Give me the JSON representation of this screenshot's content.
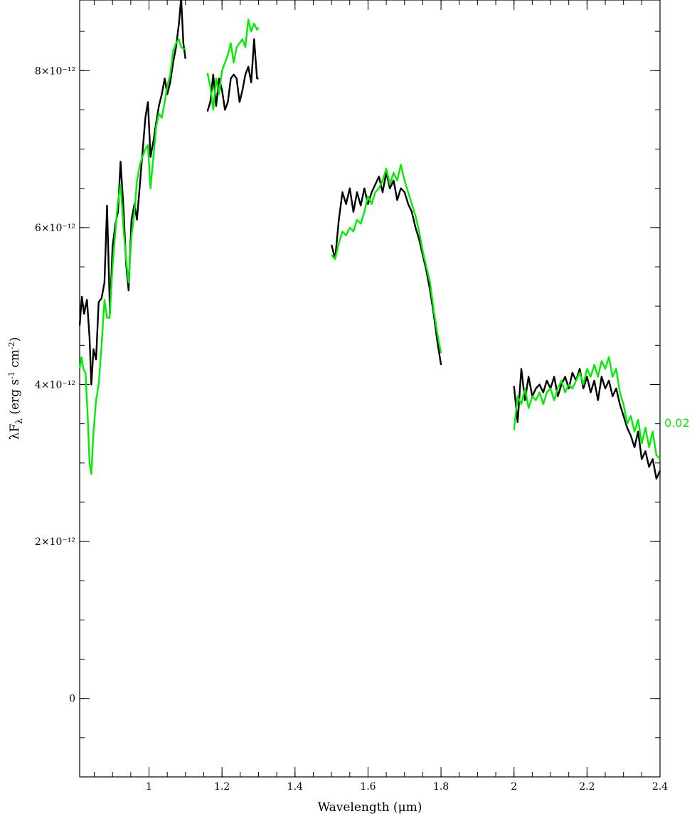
{
  "chart_data": {
    "type": "line",
    "xlabel": "Wavelength (μm)",
    "ylabel": "λF_λ (erg s⁻¹ cm⁻²)",
    "xlim": [
      0.81,
      2.4
    ],
    "ylim": [
      -1e-12,
      8.9e-12
    ],
    "grid": false,
    "x_ticks": [
      {
        "value": 1.0,
        "label": "1"
      },
      {
        "value": 1.2,
        "label": "1.2"
      },
      {
        "value": 1.4,
        "label": "1.4"
      },
      {
        "value": 1.6,
        "label": "1.6"
      },
      {
        "value": 1.8,
        "label": "1.8"
      },
      {
        "value": 2.0,
        "label": "2"
      },
      {
        "value": 2.2,
        "label": "2.2"
      },
      {
        "value": 2.4,
        "label": "2.4"
      }
    ],
    "x_minor_step": 0.05,
    "y_ticks": [
      {
        "value": 0,
        "label": "0"
      },
      {
        "value": 2e-12,
        "label": "2×10⁻¹²"
      },
      {
        "value": 4e-12,
        "label": "4×10⁻¹²"
      },
      {
        "value": 6e-12,
        "label": "6×10⁻¹²"
      },
      {
        "value": 8e-12,
        "label": "8×10⁻¹²"
      }
    ],
    "y_minor_step": 5e-13,
    "series": [
      {
        "color": "#000000",
        "segments": [
          [
            [
              0.81,
              4.75
            ],
            [
              0.816,
              5.12
            ],
            [
              0.822,
              4.9
            ],
            [
              0.83,
              5.08
            ],
            [
              0.837,
              4.6
            ],
            [
              0.842,
              4.0
            ],
            [
              0.848,
              4.45
            ],
            [
              0.855,
              4.32
            ],
            [
              0.862,
              5.05
            ],
            [
              0.87,
              5.1
            ],
            [
              0.878,
              5.3
            ],
            [
              0.885,
              6.28
            ],
            [
              0.893,
              4.9
            ],
            [
              0.9,
              5.75
            ],
            [
              0.908,
              6.05
            ],
            [
              0.915,
              6.2
            ],
            [
              0.922,
              6.84
            ],
            [
              0.93,
              6.25
            ],
            [
              0.937,
              5.55
            ],
            [
              0.944,
              5.2
            ],
            [
              0.952,
              6.1
            ],
            [
              0.96,
              6.3
            ],
            [
              0.967,
              6.1
            ],
            [
              0.975,
              6.55
            ],
            [
              0.982,
              6.95
            ],
            [
              0.99,
              7.4
            ],
            [
              0.997,
              7.6
            ],
            [
              1.004,
              6.9
            ],
            [
              1.012,
              7.1
            ],
            [
              1.02,
              7.35
            ],
            [
              1.027,
              7.55
            ],
            [
              1.035,
              7.7
            ],
            [
              1.043,
              7.9
            ],
            [
              1.05,
              7.7
            ],
            [
              1.058,
              7.85
            ],
            [
              1.066,
              8.1
            ],
            [
              1.074,
              8.3
            ],
            [
              1.082,
              8.6
            ],
            [
              1.088,
              8.93
            ],
            [
              1.094,
              8.35
            ],
            [
              1.1,
              8.15
            ]
          ],
          [
            [
              1.16,
              7.48
            ],
            [
              1.168,
              7.6
            ],
            [
              1.176,
              7.95
            ],
            [
              1.184,
              7.55
            ],
            [
              1.192,
              7.9
            ],
            [
              1.2,
              7.75
            ],
            [
              1.208,
              7.5
            ],
            [
              1.216,
              7.6
            ],
            [
              1.224,
              7.9
            ],
            [
              1.232,
              7.95
            ],
            [
              1.24,
              7.9
            ],
            [
              1.248,
              7.6
            ],
            [
              1.256,
              7.75
            ],
            [
              1.264,
              7.95
            ],
            [
              1.272,
              8.05
            ],
            [
              1.28,
              7.85
            ],
            [
              1.288,
              8.4
            ],
            [
              1.296,
              7.9
            ],
            [
              1.3,
              7.9
            ]
          ],
          [
            [
              1.5,
              5.78
            ],
            [
              1.51,
              5.6
            ],
            [
              1.52,
              6.1
            ],
            [
              1.53,
              6.45
            ],
            [
              1.54,
              6.3
            ],
            [
              1.55,
              6.5
            ],
            [
              1.56,
              6.2
            ],
            [
              1.57,
              6.45
            ],
            [
              1.58,
              6.28
            ],
            [
              1.59,
              6.5
            ],
            [
              1.6,
              6.3
            ],
            [
              1.61,
              6.45
            ],
            [
              1.62,
              6.55
            ],
            [
              1.63,
              6.65
            ],
            [
              1.64,
              6.45
            ],
            [
              1.65,
              6.7
            ],
            [
              1.66,
              6.5
            ],
            [
              1.67,
              6.6
            ],
            [
              1.68,
              6.35
            ],
            [
              1.69,
              6.5
            ],
            [
              1.7,
              6.45
            ],
            [
              1.71,
              6.3
            ],
            [
              1.72,
              6.2
            ],
            [
              1.73,
              6.0
            ],
            [
              1.74,
              5.85
            ],
            [
              1.75,
              5.65
            ],
            [
              1.76,
              5.45
            ],
            [
              1.77,
              5.2
            ],
            [
              1.78,
              4.9
            ],
            [
              1.79,
              4.55
            ],
            [
              1.8,
              4.25
            ]
          ],
          [
            [
              2.0,
              3.98
            ],
            [
              2.01,
              3.52
            ],
            [
              2.02,
              4.2
            ],
            [
              2.03,
              3.8
            ],
            [
              2.04,
              4.1
            ],
            [
              2.05,
              3.85
            ],
            [
              2.06,
              3.95
            ],
            [
              2.07,
              4.0
            ],
            [
              2.08,
              3.9
            ],
            [
              2.09,
              4.05
            ],
            [
              2.1,
              3.95
            ],
            [
              2.11,
              4.1
            ],
            [
              2.12,
              3.85
            ],
            [
              2.13,
              4.0
            ],
            [
              2.14,
              4.1
            ],
            [
              2.15,
              3.95
            ],
            [
              2.16,
              4.15
            ],
            [
              2.17,
              4.05
            ],
            [
              2.18,
              4.2
            ],
            [
              2.19,
              3.95
            ],
            [
              2.2,
              4.1
            ],
            [
              2.21,
              3.9
            ],
            [
              2.22,
              4.05
            ],
            [
              2.23,
              3.8
            ],
            [
              2.24,
              4.1
            ],
            [
              2.25,
              3.95
            ],
            [
              2.26,
              4.05
            ],
            [
              2.27,
              3.85
            ],
            [
              2.28,
              3.95
            ],
            [
              2.29,
              3.75
            ],
            [
              2.3,
              3.6
            ],
            [
              2.31,
              3.45
            ],
            [
              2.32,
              3.35
            ],
            [
              2.33,
              3.2
            ],
            [
              2.34,
              3.4
            ],
            [
              2.35,
              3.05
            ],
            [
              2.36,
              3.15
            ],
            [
              2.37,
              2.95
            ],
            [
              2.38,
              3.05
            ],
            [
              2.39,
              2.8
            ],
            [
              2.4,
              2.9
            ]
          ]
        ]
      },
      {
        "name": "0.02",
        "color": "#00ee00",
        "segments": [
          [
            [
              0.81,
              4.2
            ],
            [
              0.815,
              4.35
            ],
            [
              0.82,
              4.2
            ],
            [
              0.826,
              4.15
            ],
            [
              0.832,
              3.6
            ],
            [
              0.837,
              3.0
            ],
            [
              0.842,
              2.86
            ],
            [
              0.848,
              3.4
            ],
            [
              0.855,
              3.8
            ],
            [
              0.862,
              4.0
            ],
            [
              0.87,
              4.5
            ],
            [
              0.878,
              5.08
            ],
            [
              0.885,
              4.85
            ],
            [
              0.892,
              4.85
            ],
            [
              0.9,
              5.5
            ],
            [
              0.907,
              5.9
            ],
            [
              0.914,
              6.3
            ],
            [
              0.922,
              6.55
            ],
            [
              0.93,
              6.0
            ],
            [
              0.937,
              5.6
            ],
            [
              0.944,
              5.3
            ],
            [
              0.952,
              5.9
            ],
            [
              0.96,
              6.2
            ],
            [
              0.967,
              6.6
            ],
            [
              0.975,
              6.8
            ],
            [
              0.982,
              6.9
            ],
            [
              0.99,
              7.0
            ],
            [
              0.997,
              7.05
            ],
            [
              1.004,
              6.5
            ],
            [
              1.012,
              6.9
            ],
            [
              1.02,
              7.3
            ],
            [
              1.027,
              7.45
            ],
            [
              1.035,
              7.4
            ],
            [
              1.043,
              7.6
            ],
            [
              1.05,
              7.8
            ],
            [
              1.058,
              7.95
            ],
            [
              1.066,
              8.25
            ],
            [
              1.074,
              8.35
            ],
            [
              1.082,
              8.4
            ],
            [
              1.088,
              8.3
            ],
            [
              1.094,
              8.28
            ],
            [
              1.1,
              8.28
            ]
          ],
          [
            [
              1.16,
              7.97
            ],
            [
              1.168,
              7.8
            ],
            [
              1.176,
              7.5
            ],
            [
              1.184,
              7.9
            ],
            [
              1.192,
              7.7
            ],
            [
              1.2,
              8.0
            ],
            [
              1.208,
              8.1
            ],
            [
              1.216,
              8.2
            ],
            [
              1.224,
              8.35
            ],
            [
              1.232,
              8.1
            ],
            [
              1.24,
              8.3
            ],
            [
              1.248,
              8.35
            ],
            [
              1.256,
              8.4
            ],
            [
              1.264,
              8.3
            ],
            [
              1.272,
              8.65
            ],
            [
              1.28,
              8.5
            ],
            [
              1.288,
              8.6
            ],
            [
              1.296,
              8.52
            ],
            [
              1.3,
              8.55
            ]
          ],
          [
            [
              1.5,
              5.65
            ],
            [
              1.51,
              5.6
            ],
            [
              1.52,
              5.8
            ],
            [
              1.53,
              5.95
            ],
            [
              1.54,
              5.9
            ],
            [
              1.55,
              6.0
            ],
            [
              1.56,
              5.95
            ],
            [
              1.57,
              6.1
            ],
            [
              1.58,
              6.05
            ],
            [
              1.59,
              6.2
            ],
            [
              1.6,
              6.4
            ],
            [
              1.61,
              6.3
            ],
            [
              1.62,
              6.45
            ],
            [
              1.63,
              6.5
            ],
            [
              1.64,
              6.6
            ],
            [
              1.65,
              6.75
            ],
            [
              1.66,
              6.55
            ],
            [
              1.67,
              6.7
            ],
            [
              1.68,
              6.6
            ],
            [
              1.69,
              6.8
            ],
            [
              1.7,
              6.6
            ],
            [
              1.71,
              6.45
            ],
            [
              1.72,
              6.3
            ],
            [
              1.73,
              6.15
            ],
            [
              1.74,
              5.95
            ],
            [
              1.75,
              5.7
            ],
            [
              1.76,
              5.5
            ],
            [
              1.77,
              5.3
            ],
            [
              1.78,
              4.95
            ],
            [
              1.79,
              4.65
            ],
            [
              1.8,
              4.4
            ]
          ],
          [
            [
              2.0,
              3.42
            ],
            [
              2.01,
              3.85
            ],
            [
              2.02,
              3.75
            ],
            [
              2.03,
              3.95
            ],
            [
              2.04,
              3.7
            ],
            [
              2.05,
              3.85
            ],
            [
              2.06,
              3.8
            ],
            [
              2.07,
              3.9
            ],
            [
              2.08,
              3.75
            ],
            [
              2.09,
              3.9
            ],
            [
              2.1,
              3.95
            ],
            [
              2.11,
              3.8
            ],
            [
              2.12,
              3.95
            ],
            [
              2.13,
              4.05
            ],
            [
              2.14,
              3.9
            ],
            [
              2.15,
              4.0
            ],
            [
              2.16,
              3.95
            ],
            [
              2.17,
              4.05
            ],
            [
              2.18,
              4.15
            ],
            [
              2.19,
              4.0
            ],
            [
              2.2,
              4.2
            ],
            [
              2.21,
              4.1
            ],
            [
              2.22,
              4.25
            ],
            [
              2.23,
              4.1
            ],
            [
              2.24,
              4.3
            ],
            [
              2.25,
              4.2
            ],
            [
              2.26,
              4.35
            ],
            [
              2.27,
              4.1
            ],
            [
              2.28,
              4.2
            ],
            [
              2.29,
              3.9
            ],
            [
              2.3,
              3.75
            ],
            [
              2.31,
              3.5
            ],
            [
              2.32,
              3.6
            ],
            [
              2.33,
              3.4
            ],
            [
              2.34,
              3.55
            ],
            [
              2.35,
              3.25
            ],
            [
              2.36,
              3.45
            ],
            [
              2.37,
              3.2
            ],
            [
              2.38,
              3.4
            ],
            [
              2.39,
              3.1
            ],
            [
              2.4,
              3.05
            ]
          ]
        ]
      }
    ],
    "y_unit_scale": 1e-12
  }
}
